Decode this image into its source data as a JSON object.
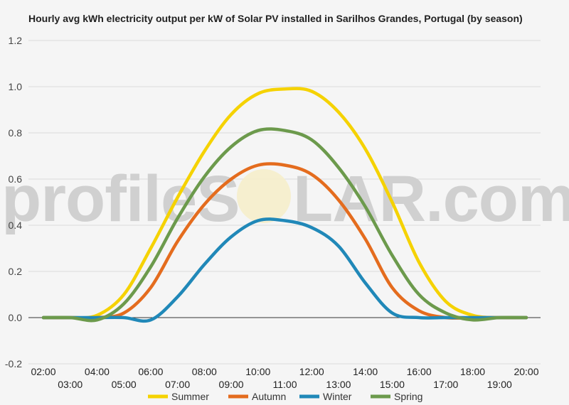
{
  "chart_data": {
    "type": "line",
    "title": "Hourly avg kWh electricity output per kW of Solar PV installed in Sarilhos Grandes, Portugal (by season)",
    "xlabel": "",
    "ylabel": "",
    "ylim": [
      -0.2,
      1.2
    ],
    "yticks": [
      "-0.2",
      "0.0",
      "0.2",
      "0.4",
      "0.6",
      "0.8",
      "1.0",
      "1.2"
    ],
    "x": [
      "02:00",
      "03:00",
      "04:00",
      "05:00",
      "06:00",
      "07:00",
      "08:00",
      "09:00",
      "10:00",
      "11:00",
      "12:00",
      "13:00",
      "14:00",
      "15:00",
      "16:00",
      "17:00",
      "18:00",
      "19:00",
      "20:00"
    ],
    "grid": true,
    "legend": "bottom",
    "series": [
      {
        "name": "Summer",
        "color": "#f5d200",
        "values": [
          0,
          0,
          0.01,
          0.1,
          0.3,
          0.52,
          0.72,
          0.88,
          0.97,
          0.99,
          0.98,
          0.89,
          0.73,
          0.5,
          0.24,
          0.07,
          0.01,
          0,
          0
        ]
      },
      {
        "name": "Autumn",
        "color": "#e46c1e",
        "values": [
          0,
          0,
          0,
          0.02,
          0.13,
          0.33,
          0.49,
          0.6,
          0.66,
          0.66,
          0.62,
          0.51,
          0.34,
          0.13,
          0.03,
          0,
          0,
          0,
          0
        ]
      },
      {
        "name": "Winter",
        "color": "#2088b8",
        "values": [
          0,
          0,
          0,
          0,
          -0.01,
          0.09,
          0.23,
          0.35,
          0.42,
          0.42,
          0.39,
          0.31,
          0.15,
          0.02,
          0,
          0,
          0,
          0,
          0
        ]
      },
      {
        "name": "Spring",
        "color": "#6c9a4c",
        "values": [
          0,
          0,
          -0.01,
          0.06,
          0.22,
          0.43,
          0.61,
          0.74,
          0.81,
          0.81,
          0.77,
          0.65,
          0.48,
          0.27,
          0.1,
          0.02,
          -0.01,
          0,
          0
        ]
      }
    ]
  },
  "watermark": {
    "left": "profileS",
    "right": "LAR.com"
  }
}
